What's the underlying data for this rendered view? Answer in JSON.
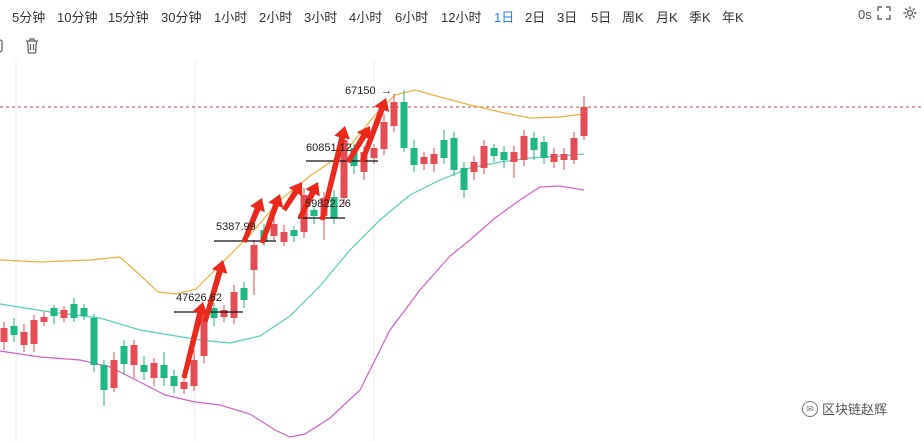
{
  "toolbar": {
    "intervals": [
      "5分钟",
      "10分钟",
      "15分钟",
      "30分钟",
      "1小时",
      "2小时",
      "3小时",
      "4小时",
      "6小时",
      "12小时",
      "1日",
      "2日",
      "3日",
      "5日",
      "周K",
      "月K",
      "季K",
      "年K"
    ],
    "active_interval": "1日",
    "countdown": "0s"
  },
  "colors": {
    "up": "#e54d56",
    "down": "#1fb784",
    "upper_band": "#e8b23c",
    "middle_band": "#55d0b8",
    "lower_band": "#d163c4",
    "price_line": "#c94a4a",
    "arrow": "#e8291c",
    "active": "#2d7df6"
  },
  "chart_data": {
    "type": "candlestick",
    "indicator": "bollinger-bands",
    "annotations": [
      "67150",
      "60851.12",
      "5387.99",
      "59822.26",
      "47626.62"
    ],
    "candles": [
      {
        "o": 0,
        "h": 0,
        "l": 0,
        "c": 0
      }
    ]
  },
  "watermark": {
    "text": "区块链赵辉"
  }
}
